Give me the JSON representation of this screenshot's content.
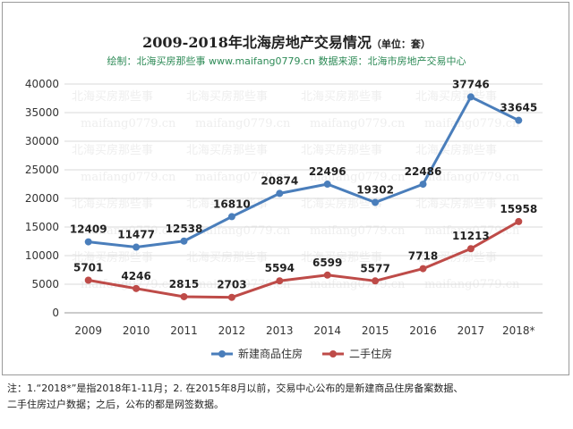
{
  "title_main": "2009-2018年北海房地产交易情况",
  "title_unit": "（单位：套）",
  "subtitle": "绘制：北海买房那些事  www.maifang0779.cn   数据来源：北海市房地产交易中心",
  "watermark": [
    "北海买房那些事",
    "maifang0779.cn"
  ],
  "note_line1": "注：1.“2018*”是指2018年1-11月；2. 在2015年8月以前，交易中心公布的是新建商品住房备案数据、",
  "note_line2": "二手住房过户数据；之后，公布的都是网签数据。",
  "colors": {
    "series1": "#4a7ebb",
    "series2": "#be4b48",
    "grid": "#d9d9d9",
    "watermark": "#eeeeee"
  },
  "chart_data": {
    "type": "line",
    "categories": [
      "2009",
      "2010",
      "2011",
      "2012",
      "2013",
      "2014",
      "2015",
      "2016",
      "2017",
      "2018*"
    ],
    "yticks": [
      "0",
      "5000",
      "10000",
      "15000",
      "20000",
      "25000",
      "30000",
      "35000",
      "40000"
    ],
    "ylim": [
      0,
      40000
    ],
    "grid": true,
    "legend_position": "bottom",
    "series": [
      {
        "name": "新建商品住房",
        "values": [
          12409,
          11477,
          12538,
          16810,
          20874,
          22496,
          19302,
          22486,
          37746,
          33645
        ]
      },
      {
        "name": "二手住房",
        "values": [
          5701,
          4246,
          2815,
          2703,
          5594,
          6599,
          5577,
          7718,
          11213,
          15958
        ]
      }
    ]
  }
}
